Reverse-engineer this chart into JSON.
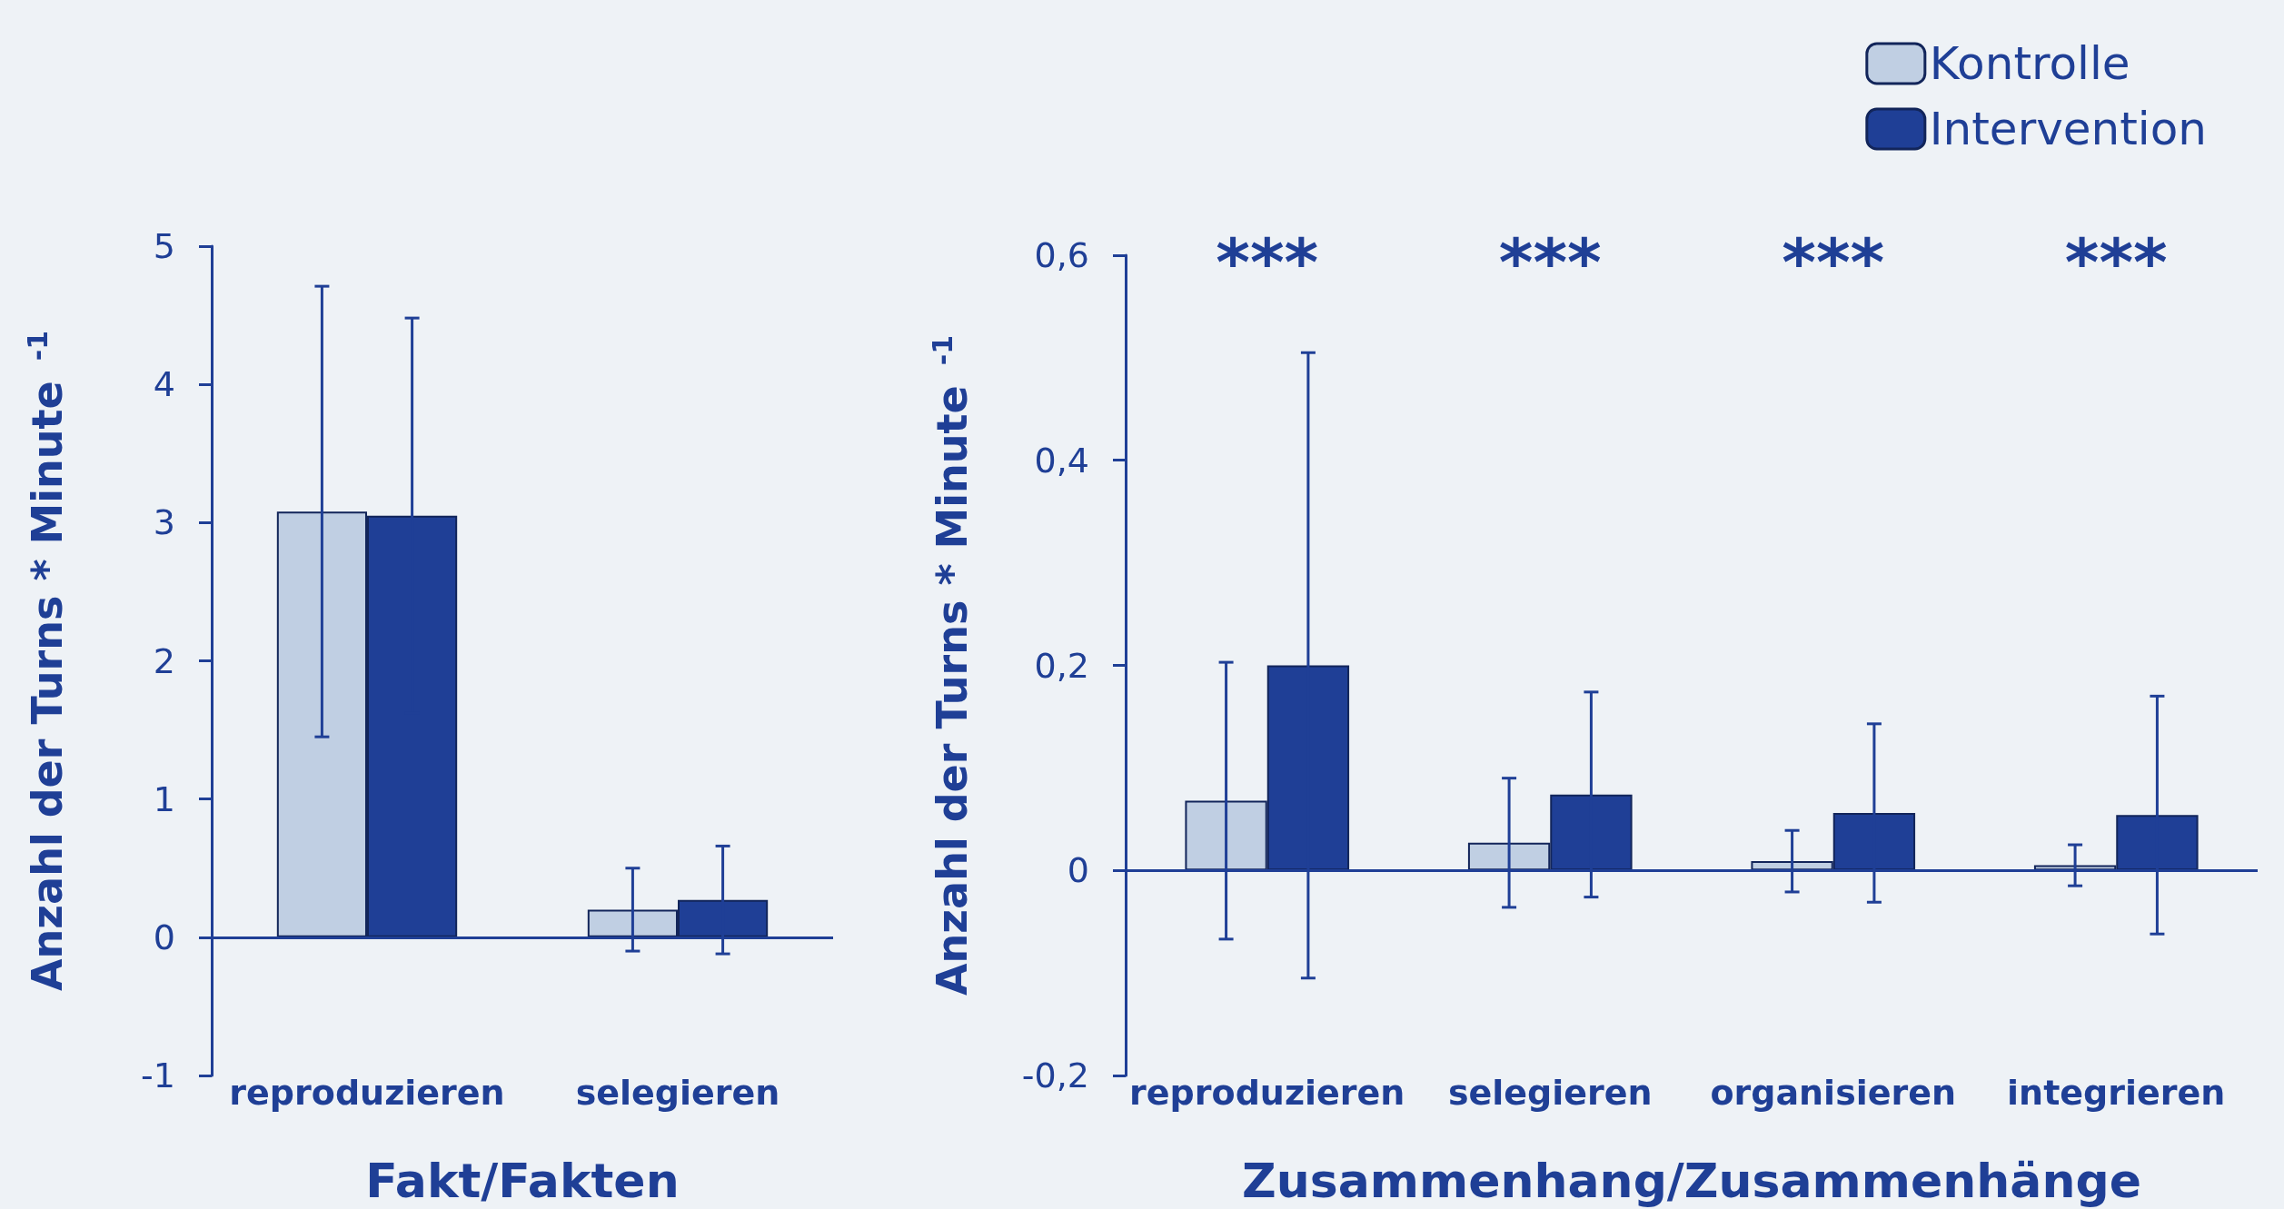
{
  "chart_data": [
    {
      "type": "bar",
      "xlabel": "Fakt/Fakten",
      "ylabel": "Anzahl der Turns * Minute $^{-1}$",
      "categories": [
        "reproduzieren",
        "selegieren"
      ],
      "series": [
        {
          "color": "#c0cfe3",
          "values": [
            3.08,
            0.2
          ],
          "errors": [
            1.63,
            0.3
          ]
        },
        {
          "color": "#1f3f96",
          "values": [
            3.05,
            0.27
          ],
          "errors": [
            1.43,
            0.39
          ]
        }
      ],
      "ylim": [
        -1,
        5
      ],
      "yticks": [
        -1,
        0,
        1,
        2,
        3,
        4,
        5
      ],
      "ref_lines": [
        {
          "axis": "y",
          "value": 0
        }
      ],
      "grid": false,
      "legend": false
    },
    {
      "type": "bar",
      "xlabel": "Zusammenhang/Zusammenhänge",
      "ylabel": "Anzahl der Turns * Minute $^{-1}$",
      "categories": [
        "reproduzieren",
        "selegieren",
        "organisieren",
        "integrieren"
      ],
      "series": [
        {
          "name": "Kontrolle",
          "color": "#c0cfe3",
          "values": [
            0.068,
            0.027,
            0.009,
            0.005
          ],
          "errors": [
            0.135,
            0.063,
            0.03,
            0.02
          ]
        },
        {
          "name": "Intervention",
          "color": "#1f3f96",
          "values": [
            0.2,
            0.074,
            0.056,
            0.054
          ],
          "errors": [
            0.305,
            0.1,
            0.087,
            0.116
          ]
        }
      ],
      "ylim": [
        -0.2,
        0.6
      ],
      "yticks": [
        {
          "value": -0.2,
          "label": "-0,2"
        },
        {
          "value": 0,
          "label": "0"
        },
        {
          "value": 0.2,
          "label": "0,2"
        },
        {
          "value": 0.4,
          "label": "0,4"
        },
        {
          "value": 0.6,
          "label": "0,6"
        }
      ],
      "annotations": [
        "***",
        "***",
        "***",
        "***"
      ],
      "ref_lines": [
        {
          "axis": "y",
          "value": 0
        }
      ],
      "grid": false,
      "legend": "top right"
    }
  ]
}
